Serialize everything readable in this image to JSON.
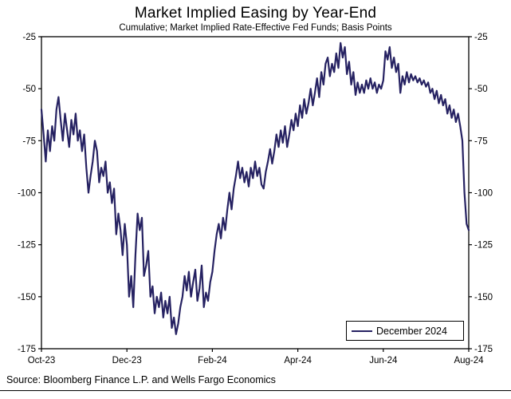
{
  "header": {
    "title": "Market Implied Easing by Year-End",
    "subtitle": "Cumulative; Market Implied Rate-Effective Fed Funds; Basis Points"
  },
  "footer": {
    "source": "Source: Bloomberg Finance L.P. and Wells Fargo Economics"
  },
  "legend": {
    "label": "December 2024"
  },
  "colors": {
    "line": "#262262",
    "axis": "#000000",
    "text": "#000000",
    "background": "#ffffff"
  },
  "chart_data": {
    "type": "line",
    "title": "Market Implied Easing by Year-End",
    "subtitle": "Cumulative; Market Implied Rate-Effective Fed Funds; Basis Points",
    "ylabel": "Basis Points",
    "ylim": [
      -175,
      -25
    ],
    "yticks": [
      -25,
      -50,
      -75,
      -100,
      -125,
      -150,
      -175
    ],
    "xlim": [
      0,
      10
    ],
    "xticks": [
      0,
      2,
      4,
      6,
      8,
      10
    ],
    "x_tick_labels": [
      "Oct-23",
      "Dec-23",
      "Feb-24",
      "Apr-24",
      "Jun-24",
      "Aug-24"
    ],
    "grid": false,
    "legend_position": "lower right",
    "series": [
      {
        "name": "December 2024",
        "color": "#262262",
        "points": [
          [
            0.0,
            -60
          ],
          [
            0.05,
            -72
          ],
          [
            0.1,
            -85
          ],
          [
            0.15,
            -70
          ],
          [
            0.2,
            -80
          ],
          [
            0.25,
            -68
          ],
          [
            0.3,
            -75
          ],
          [
            0.35,
            -60
          ],
          [
            0.4,
            -54
          ],
          [
            0.45,
            -65
          ],
          [
            0.5,
            -75
          ],
          [
            0.55,
            -62
          ],
          [
            0.6,
            -70
          ],
          [
            0.65,
            -78
          ],
          [
            0.7,
            -65
          ],
          [
            0.75,
            -72
          ],
          [
            0.8,
            -62
          ],
          [
            0.85,
            -75
          ],
          [
            0.9,
            -70
          ],
          [
            0.95,
            -80
          ],
          [
            1.0,
            -72
          ],
          [
            1.05,
            -88
          ],
          [
            1.1,
            -100
          ],
          [
            1.15,
            -92
          ],
          [
            1.2,
            -85
          ],
          [
            1.25,
            -75
          ],
          [
            1.3,
            -80
          ],
          [
            1.35,
            -95
          ],
          [
            1.4,
            -88
          ],
          [
            1.45,
            -92
          ],
          [
            1.5,
            -85
          ],
          [
            1.55,
            -100
          ],
          [
            1.6,
            -95
          ],
          [
            1.65,
            -105
          ],
          [
            1.7,
            -98
          ],
          [
            1.75,
            -120
          ],
          [
            1.8,
            -110
          ],
          [
            1.85,
            -118
          ],
          [
            1.9,
            -130
          ],
          [
            1.95,
            -115
          ],
          [
            2.0,
            -125
          ],
          [
            2.05,
            -150
          ],
          [
            2.1,
            -140
          ],
          [
            2.15,
            -155
          ],
          [
            2.2,
            -130
          ],
          [
            2.25,
            -110
          ],
          [
            2.3,
            -118
          ],
          [
            2.35,
            -112
          ],
          [
            2.4,
            -140
          ],
          [
            2.45,
            -135
          ],
          [
            2.5,
            -128
          ],
          [
            2.55,
            -150
          ],
          [
            2.6,
            -145
          ],
          [
            2.65,
            -158
          ],
          [
            2.7,
            -150
          ],
          [
            2.75,
            -155
          ],
          [
            2.8,
            -148
          ],
          [
            2.85,
            -160
          ],
          [
            2.9,
            -152
          ],
          [
            2.95,
            -158
          ],
          [
            3.0,
            -150
          ],
          [
            3.05,
            -165
          ],
          [
            3.1,
            -160
          ],
          [
            3.15,
            -168
          ],
          [
            3.2,
            -163
          ],
          [
            3.25,
            -155
          ],
          [
            3.3,
            -150
          ],
          [
            3.35,
            -140
          ],
          [
            3.4,
            -147
          ],
          [
            3.45,
            -138
          ],
          [
            3.5,
            -150
          ],
          [
            3.55,
            -143
          ],
          [
            3.6,
            -137
          ],
          [
            3.65,
            -152
          ],
          [
            3.7,
            -146
          ],
          [
            3.75,
            -135
          ],
          [
            3.8,
            -155
          ],
          [
            3.85,
            -148
          ],
          [
            3.9,
            -152
          ],
          [
            3.95,
            -143
          ],
          [
            4.0,
            -138
          ],
          [
            4.05,
            -128
          ],
          [
            4.1,
            -120
          ],
          [
            4.15,
            -115
          ],
          [
            4.2,
            -122
          ],
          [
            4.25,
            -112
          ],
          [
            4.3,
            -118
          ],
          [
            4.35,
            -108
          ],
          [
            4.4,
            -100
          ],
          [
            4.45,
            -108
          ],
          [
            4.5,
            -98
          ],
          [
            4.55,
            -92
          ],
          [
            4.6,
            -85
          ],
          [
            4.65,
            -93
          ],
          [
            4.7,
            -88
          ],
          [
            4.75,
            -95
          ],
          [
            4.8,
            -90
          ],
          [
            4.85,
            -97
          ],
          [
            4.9,
            -88
          ],
          [
            4.95,
            -93
          ],
          [
            5.0,
            -85
          ],
          [
            5.05,
            -92
          ],
          [
            5.1,
            -88
          ],
          [
            5.15,
            -96
          ],
          [
            5.2,
            -98
          ],
          [
            5.25,
            -90
          ],
          [
            5.3,
            -85
          ],
          [
            5.35,
            -79
          ],
          [
            5.4,
            -86
          ],
          [
            5.45,
            -80
          ],
          [
            5.5,
            -72
          ],
          [
            5.55,
            -78
          ],
          [
            5.6,
            -70
          ],
          [
            5.65,
            -76
          ],
          [
            5.7,
            -68
          ],
          [
            5.75,
            -78
          ],
          [
            5.8,
            -72
          ],
          [
            5.85,
            -65
          ],
          [
            5.9,
            -70
          ],
          [
            5.95,
            -62
          ],
          [
            6.0,
            -68
          ],
          [
            6.05,
            -58
          ],
          [
            6.1,
            -64
          ],
          [
            6.15,
            -55
          ],
          [
            6.2,
            -62
          ],
          [
            6.25,
            -57
          ],
          [
            6.3,
            -50
          ],
          [
            6.35,
            -58
          ],
          [
            6.4,
            -52
          ],
          [
            6.45,
            -45
          ],
          [
            6.5,
            -54
          ],
          [
            6.55,
            -42
          ],
          [
            6.6,
            -48
          ],
          [
            6.65,
            -38
          ],
          [
            6.7,
            -35
          ],
          [
            6.75,
            -44
          ],
          [
            6.8,
            -38
          ],
          [
            6.85,
            -42
          ],
          [
            6.9,
            -33
          ],
          [
            6.95,
            -40
          ],
          [
            7.0,
            -28
          ],
          [
            7.05,
            -35
          ],
          [
            7.1,
            -30
          ],
          [
            7.15,
            -43
          ],
          [
            7.2,
            -37
          ],
          [
            7.25,
            -48
          ],
          [
            7.3,
            -42
          ],
          [
            7.35,
            -53
          ],
          [
            7.4,
            -47
          ],
          [
            7.45,
            -52
          ],
          [
            7.5,
            -48
          ],
          [
            7.55,
            -52
          ],
          [
            7.6,
            -46
          ],
          [
            7.65,
            -50
          ],
          [
            7.7,
            -45
          ],
          [
            7.75,
            -50
          ],
          [
            7.8,
            -47
          ],
          [
            7.85,
            -52
          ],
          [
            7.9,
            -48
          ],
          [
            7.95,
            -50
          ],
          [
            8.0,
            -46
          ],
          [
            8.05,
            -32
          ],
          [
            8.1,
            -36
          ],
          [
            8.15,
            -30
          ],
          [
            8.2,
            -40
          ],
          [
            8.25,
            -35
          ],
          [
            8.3,
            -42
          ],
          [
            8.35,
            -38
          ],
          [
            8.4,
            -52
          ],
          [
            8.45,
            -44
          ],
          [
            8.5,
            -48
          ],
          [
            8.55,
            -42
          ],
          [
            8.6,
            -47
          ],
          [
            8.65,
            -43
          ],
          [
            8.7,
            -46
          ],
          [
            8.75,
            -44
          ],
          [
            8.8,
            -47
          ],
          [
            8.85,
            -45
          ],
          [
            8.9,
            -48
          ],
          [
            8.95,
            -46
          ],
          [
            9.0,
            -49
          ],
          [
            9.05,
            -47
          ],
          [
            9.1,
            -52
          ],
          [
            9.15,
            -50
          ],
          [
            9.2,
            -55
          ],
          [
            9.25,
            -51
          ],
          [
            9.3,
            -57
          ],
          [
            9.35,
            -53
          ],
          [
            9.4,
            -58
          ],
          [
            9.45,
            -55
          ],
          [
            9.5,
            -62
          ],
          [
            9.55,
            -58
          ],
          [
            9.6,
            -64
          ],
          [
            9.65,
            -60
          ],
          [
            9.7,
            -66
          ],
          [
            9.75,
            -62
          ],
          [
            9.8,
            -68
          ],
          [
            9.85,
            -75
          ],
          [
            9.9,
            -100
          ],
          [
            9.95,
            -115
          ],
          [
            10.0,
            -118
          ]
        ]
      }
    ]
  }
}
